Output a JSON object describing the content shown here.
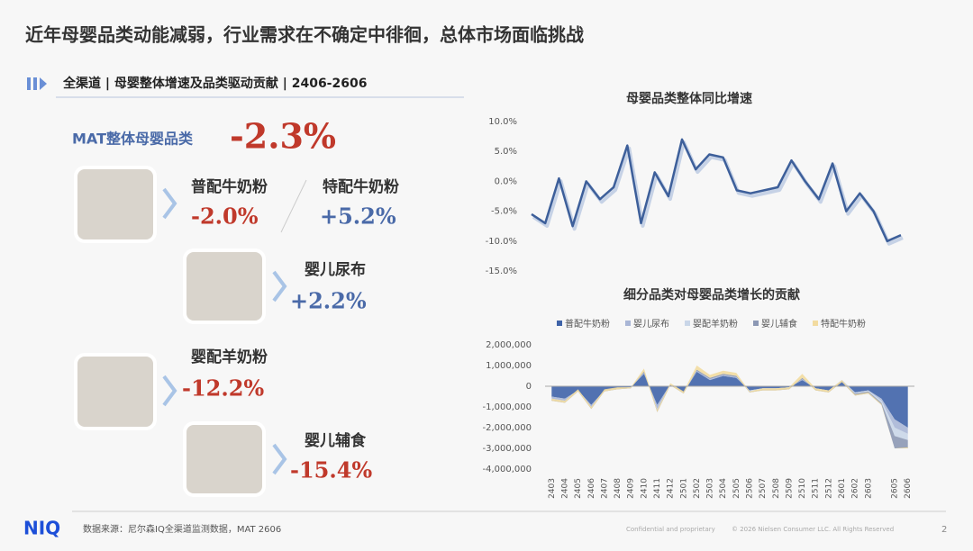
{
  "title": "近年母婴品类动能减弱，行业需求在不确定中徘徊，总体市场面临挑战",
  "section": "全渠道 | 母婴整体增速及品类驱动贡献 | 2406-2606",
  "overall": {
    "label": "MAT整体母婴品类",
    "value": "-2.3%"
  },
  "items": [
    {
      "label": "普配牛奶粉",
      "value": "-2.0%"
    },
    {
      "label": "特配牛奶粉",
      "value": "+5.2%"
    },
    {
      "label": "婴儿尿布",
      "value": "+2.2%"
    },
    {
      "label": "婴配羊奶粉",
      "value": "-12.2%"
    },
    {
      "label": "婴儿辅食",
      "value": "-15.4%"
    }
  ],
  "footer": {
    "logo": "NIQ",
    "source": "数据来源：尼尔森IQ全渠道监测数据，MAT 2606",
    "confidential": "Confidential and proprietary",
    "copyright": "© 2026 Nielsen Consumer LLC. All Rights Reserved",
    "page": "2"
  },
  "chart_data": [
    {
      "type": "line",
      "title": "母婴品类整体同比增速",
      "color": "#3d5f9a",
      "values": [
        -5.5,
        -7,
        0.5,
        -7.5,
        0,
        -3,
        -1,
        6,
        -7,
        1.5,
        -2.5,
        7,
        2,
        4.5,
        4,
        -1.5,
        -2,
        -1.5,
        -1,
        3.5,
        0,
        -3,
        3,
        -5,
        -2,
        -5,
        -10,
        -9
      ],
      "ylim": [
        -15,
        10
      ],
      "yticks": [
        {
          "value": 10,
          "label": "10.0%"
        },
        {
          "value": 5,
          "label": "5.0%"
        },
        {
          "value": 0,
          "label": "0.0%"
        },
        {
          "value": -5,
          "label": "-5.0%"
        },
        {
          "value": -10,
          "label": "-10.0%"
        },
        {
          "value": -15,
          "label": "-15.0%"
        }
      ]
    },
    {
      "type": "stacked-area",
      "title": "细分品类对母婴品类增长的贡献",
      "categories": [
        "2403",
        "2404",
        "2405",
        "2406",
        "2407",
        "2408",
        "2409",
        "2410",
        "2411",
        "2412",
        "2501",
        "2502",
        "2503",
        "2504",
        "2505",
        "2506",
        "2507",
        "2508",
        "2509",
        "2510",
        "2511",
        "2512",
        "2601",
        "2602",
        "2603",
        null,
        "2605",
        "2606"
      ],
      "series": [
        {
          "name": "普配牛奶粉",
          "color": "#3f63a8",
          "values": [
            -500000,
            -600000,
            -200000,
            -900000,
            -200000,
            -100000,
            -50000,
            600000,
            -900000,
            100000,
            -300000,
            700000,
            300000,
            500000,
            400000,
            -200000,
            -100000,
            -100000,
            -50000,
            300000,
            -100000,
            -200000,
            200000,
            -300000,
            -200000,
            -600000,
            -1600000,
            -2000000
          ]
        },
        {
          "name": "婴儿尿布",
          "color": "#a9b6d6",
          "values": [
            -100000,
            -100000,
            0,
            -100000,
            0,
            0,
            0,
            100000,
            -200000,
            0,
            0,
            100000,
            100000,
            100000,
            100000,
            0,
            0,
            0,
            0,
            100000,
            0,
            0,
            100000,
            0,
            0,
            -100000,
            -400000,
            -300000
          ]
        },
        {
          "name": "婴配羊奶粉",
          "color": "#c9d6e8",
          "values": [
            -50000,
            -50000,
            -20000,
            -50000,
            -20000,
            -20000,
            -20000,
            -50000,
            -50000,
            -20000,
            -20000,
            -50000,
            -50000,
            -50000,
            -50000,
            -50000,
            -50000,
            -50000,
            -50000,
            -50000,
            -50000,
            -50000,
            -50000,
            -50000,
            -50000,
            -100000,
            -400000,
            -300000
          ]
        },
        {
          "name": "婴儿辅食",
          "color": "#8c98b4",
          "values": [
            -50000,
            -50000,
            -30000,
            -50000,
            -30000,
            -30000,
            -30000,
            50000,
            -100000,
            -30000,
            -30000,
            50000,
            50000,
            50000,
            50000,
            -50000,
            -50000,
            -50000,
            -50000,
            50000,
            -50000,
            -50000,
            -50000,
            -100000,
            -100000,
            -100000,
            -600000,
            -400000
          ]
        },
        {
          "name": "特配牛奶粉",
          "color": "#f2dba0",
          "values": [
            100000,
            100000,
            100000,
            100000,
            100000,
            100000,
            50000,
            150000,
            100000,
            100000,
            100000,
            200000,
            150000,
            150000,
            150000,
            50000,
            100000,
            100000,
            100000,
            200000,
            100000,
            100000,
            100000,
            50000,
            50000,
            50000,
            0,
            50000
          ]
        }
      ],
      "ylim": [
        -4000000,
        2000000
      ],
      "yticks": [
        {
          "value": 2000000,
          "label": "2,000,000"
        },
        {
          "value": 1000000,
          "label": "1,000,000"
        },
        0,
        {
          "value": -1000000,
          "label": "-1,000,000"
        },
        {
          "value": -2000000,
          "label": "-2,000,000"
        },
        {
          "value": -3000000,
          "label": "-3,000,000"
        },
        {
          "value": -4000000,
          "label": "-4,000,000"
        }
      ]
    }
  ]
}
